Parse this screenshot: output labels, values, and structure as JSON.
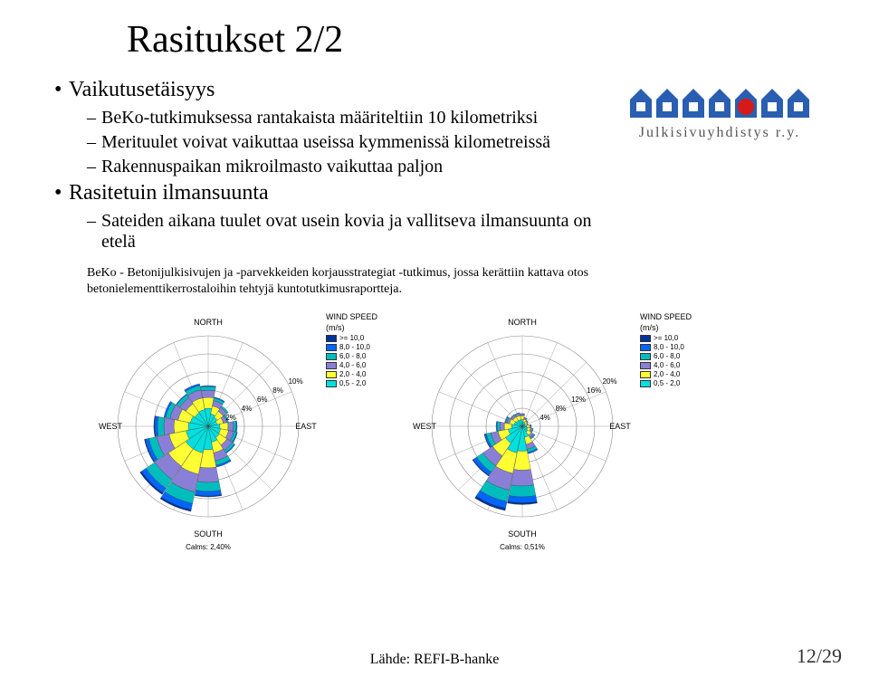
{
  "title": "Rasitukset 2/2",
  "bullets": {
    "b1": "Vaikutusetäisyys",
    "b1a": "BeKo-tutkimuksessa rantakaista määriteltiin 10 kilometriksi",
    "b1b": "Merituulet voivat vaikuttaa useissa kymmenissä kilometreissä",
    "b1c": "Rakennuspaikan mikroilmasto vaikuttaa paljon",
    "b2": "Rasitetuin ilmansuunta",
    "b2a": "Sateiden aikana tuulet ovat usein kovia ja vallitseva ilmansuunta on etelä"
  },
  "caption": "BeKo - Betonijulkisivujen ja -parvekkeiden korjausstrategiat -tutkimus, jossa kerättiin kattava otos betonielementtikerrostaloihin tehtyjä kuntotutkimusraportteja.",
  "logo": {
    "text": "Julkisivuyhdistys r.y.",
    "house_blue": "#2a5eb0",
    "house_white": "#ffffff",
    "circle_red": "#d61a1a"
  },
  "compass": {
    "n": "NORTH",
    "s": "SOUTH",
    "e": "EAST",
    "w": "WEST"
  },
  "windrose": {
    "grid_color": "#888888",
    "background": "#ffffff",
    "colors": {
      "b1": "#00e0e0",
      "b2": "#ffff33",
      "b3": "#8a7fd6",
      "b4": "#00bdbd",
      "b5": "#0066ff",
      "b6": "#003399"
    },
    "sectors_deg": [
      0,
      22.5,
      45,
      67.5,
      90,
      112.5,
      135,
      157.5,
      180,
      202.5,
      225,
      247.5,
      270,
      292.5,
      315,
      337.5
    ],
    "chart1": {
      "percent_labels": [
        "2%",
        "4%",
        "6%",
        "8%",
        "10%"
      ],
      "rings": [
        2,
        4,
        6,
        8,
        10
      ],
      "max": 10,
      "calms": "Calms: 2,40%",
      "data": [
        [
          2.0,
          1.2,
          0.8,
          0.4,
          0.1,
          0.0
        ],
        [
          1.4,
          0.9,
          0.6,
          0.3,
          0.1,
          0.0
        ],
        [
          1.2,
          0.8,
          0.5,
          0.2,
          0.0,
          0.0
        ],
        [
          1.0,
          0.7,
          0.4,
          0.2,
          0.0,
          0.0
        ],
        [
          1.3,
          0.9,
          0.6,
          0.3,
          0.1,
          0.0
        ],
        [
          1.4,
          0.9,
          0.6,
          0.3,
          0.1,
          0.0
        ],
        [
          1.5,
          1.0,
          0.7,
          0.3,
          0.1,
          0.0
        ],
        [
          1.8,
          1.2,
          0.9,
          0.5,
          0.2,
          0.0
        ],
        [
          2.6,
          2.0,
          1.6,
          1.0,
          0.5,
          0.1
        ],
        [
          3.0,
          2.4,
          2.0,
          1.3,
          0.7,
          0.2
        ],
        [
          3.0,
          2.3,
          1.8,
          1.2,
          0.6,
          0.2
        ],
        [
          2.5,
          1.9,
          1.4,
          0.9,
          0.4,
          0.1
        ],
        [
          2.2,
          1.6,
          1.1,
          0.7,
          0.3,
          0.1
        ],
        [
          2.0,
          1.4,
          0.9,
          0.5,
          0.2,
          0.0
        ],
        [
          1.8,
          1.2,
          0.8,
          0.4,
          0.1,
          0.0
        ],
        [
          1.9,
          1.3,
          0.9,
          0.5,
          0.2,
          0.0
        ]
      ]
    },
    "chart2": {
      "percent_labels": [
        "4%",
        "8%",
        "12%",
        "16%",
        "20%"
      ],
      "rings": [
        4,
        8,
        12,
        16,
        20
      ],
      "max": 20,
      "calms": "Calms: 0,51%",
      "data": [
        [
          1.5,
          0.8,
          0.4,
          0.1,
          0.0,
          0.0
        ],
        [
          1.0,
          0.6,
          0.3,
          0.1,
          0.0,
          0.0
        ],
        [
          0.8,
          0.5,
          0.2,
          0.1,
          0.0,
          0.0
        ],
        [
          0.7,
          0.4,
          0.2,
          0.0,
          0.0,
          0.0
        ],
        [
          1.0,
          0.6,
          0.3,
          0.1,
          0.0,
          0.0
        ],
        [
          1.2,
          0.7,
          0.4,
          0.2,
          0.0,
          0.0
        ],
        [
          1.5,
          0.9,
          0.6,
          0.3,
          0.1,
          0.0
        ],
        [
          2.5,
          1.6,
          1.1,
          0.7,
          0.3,
          0.0
        ],
        [
          5.5,
          4.2,
          3.5,
          2.4,
          1.3,
          0.4
        ],
        [
          6.0,
          4.6,
          3.8,
          2.6,
          1.5,
          0.5
        ],
        [
          4.5,
          3.4,
          2.6,
          1.7,
          0.9,
          0.2
        ],
        [
          3.2,
          2.3,
          1.6,
          1.0,
          0.4,
          0.1
        ],
        [
          2.4,
          1.6,
          1.0,
          0.6,
          0.2,
          0.0
        ],
        [
          1.8,
          1.1,
          0.6,
          0.3,
          0.1,
          0.0
        ],
        [
          1.6,
          0.9,
          0.5,
          0.2,
          0.0,
          0.0
        ],
        [
          1.5,
          0.9,
          0.5,
          0.2,
          0.0,
          0.0
        ]
      ]
    }
  },
  "legend": {
    "title": "WIND SPEED",
    "unit": "(m/s)",
    "rows": [
      {
        "label": ">= 10,0",
        "color": "#003399"
      },
      {
        "label": "8,0 - 10,0",
        "color": "#0066ff"
      },
      {
        "label": "6,0 - 8,0",
        "color": "#00bdbd"
      },
      {
        "label": "4,0 - 6,0",
        "color": "#8a7fd6"
      },
      {
        "label": "2,0 - 4,0",
        "color": "#ffff33"
      },
      {
        "label": "0,5 - 2,0",
        "color": "#00e0e0"
      }
    ]
  },
  "footer": {
    "source": "Lähde: REFI-B-hanke",
    "page": "12/29"
  }
}
